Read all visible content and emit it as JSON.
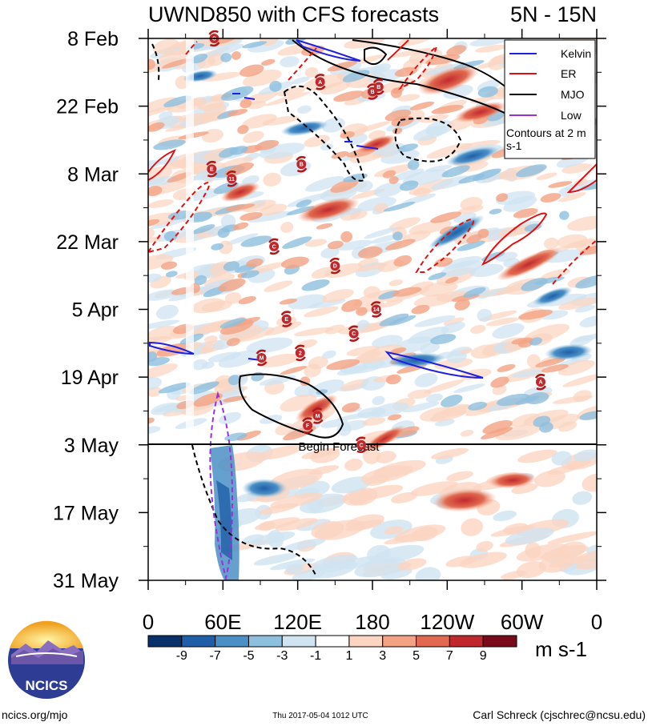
{
  "chart_data": {
    "type": "heatmap",
    "title": "UWND850 with CFS forecasts",
    "region_label": "5N - 15N",
    "y_tick_labels": [
      "8 Feb",
      "22 Feb",
      "8 Mar",
      "22 Mar",
      "5 Apr",
      "19 Apr",
      "3 May",
      "17 May",
      "31 May"
    ],
    "x_tick_labels": [
      "0",
      "60E",
      "120E",
      "180",
      "120W",
      "60W",
      "0"
    ],
    "x_range_deg_east": [
      0,
      360
    ],
    "time_range": [
      "8 Feb",
      "31 May"
    ],
    "forecast_start": "3 May",
    "forecast_label": "Begin Forecast",
    "legend": {
      "entries": [
        {
          "label": "Kelvin",
          "color": "#1f1fe0"
        },
        {
          "label": "ER",
          "color": "#e01010"
        },
        {
          "label": "MJO",
          "color": "#000000"
        },
        {
          "label": "Low",
          "color": "#9b30d8"
        }
      ],
      "note": "Contours at 2 m s-1",
      "placement": "top-right"
    },
    "colorbar": {
      "labels": [
        "-9",
        "-7",
        "-5",
        "-3",
        "-1",
        "1",
        "3",
        "5",
        "7",
        "9"
      ],
      "units": "m s-1",
      "colors": [
        "#08306b",
        "#1f5fa8",
        "#4a8fc6",
        "#8dbfdf",
        "#cfe3f1",
        "#ffffff",
        "#fbd5c2",
        "#f3a283",
        "#e0694f",
        "#c1282d",
        "#7a0a1a"
      ]
    },
    "storm_markers": [
      {
        "label": "C",
        "x_deg": 53,
        "date": "8 Feb"
      },
      {
        "label": "A",
        "x_deg": 138,
        "date": "17 Feb"
      },
      {
        "label": "B",
        "x_deg": 180,
        "date": "19 Feb"
      },
      {
        "label": "B",
        "x_deg": 185,
        "date": "18 Feb"
      },
      {
        "label": "E",
        "x_deg": 51,
        "date": "7 Mar"
      },
      {
        "label": "11",
        "x_deg": 67,
        "date": "9 Mar"
      },
      {
        "label": "B",
        "x_deg": 123,
        "date": "6 Mar"
      },
      {
        "label": "C",
        "x_deg": 101,
        "date": "23 Mar"
      },
      {
        "label": "D",
        "x_deg": 150,
        "date": "27 Mar"
      },
      {
        "label": "14",
        "x_deg": 183,
        "date": "5 Apr"
      },
      {
        "label": "E",
        "x_deg": 111,
        "date": "7 Apr"
      },
      {
        "label": "C",
        "x_deg": 165,
        "date": "10 Apr"
      },
      {
        "label": "2",
        "x_deg": 122,
        "date": "14 Apr"
      },
      {
        "label": "M",
        "x_deg": 91,
        "date": "15 Apr"
      },
      {
        "label": "M",
        "x_deg": 136,
        "date": "27 Apr"
      },
      {
        "label": "F",
        "x_deg": 128,
        "date": "29 Apr"
      },
      {
        "label": "A",
        "x_deg": 315,
        "date": "20 Apr"
      },
      {
        "label": "C",
        "x_deg": 171,
        "date": "3 May"
      }
    ]
  },
  "logo": {
    "text": "NCICS"
  },
  "footer": {
    "url": "ncics.org/mjo",
    "timestamp": "Thu 2017-05-04 1012 UTC",
    "author": "Carl Schreck (cjschrec@ncsu.edu)"
  }
}
